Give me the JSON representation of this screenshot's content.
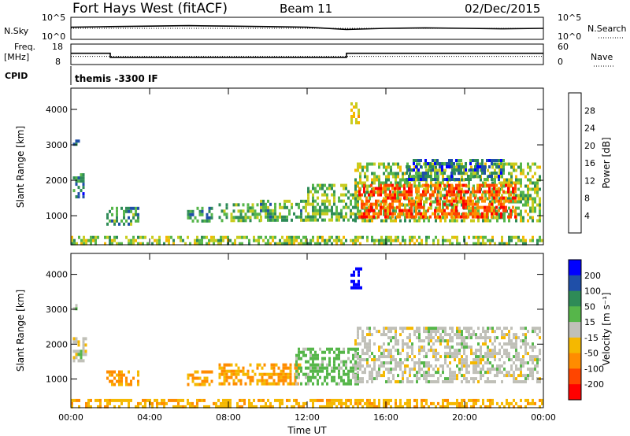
{
  "header": {
    "radar_title": "Fort Hays West (fitACF)",
    "beam_label": "Beam 11",
    "date_label": "02/Dec/2015"
  },
  "top_panels": {
    "nsky_label": "N.Sky",
    "nsearch_label": "N.Search",
    "noise_ticks_left": [
      "10^5",
      "10^0"
    ],
    "noise_ticks_right": [
      "10^5",
      "10^0"
    ],
    "freq_label_line1": "Freq.",
    "freq_label_line2": "[MHz]",
    "freq_ticks": [
      "18",
      "8"
    ],
    "nave_label": "Nave",
    "nave_ticks": [
      "60",
      "0"
    ],
    "cpid_label": "CPID",
    "cpid_value": "themis -3300 IF"
  },
  "colors": {
    "power_scale": [
      "#0000ff",
      "#1f4fa8",
      "#2e8b57",
      "#56b64a",
      "#c8cc1f",
      "#f5b800",
      "#ff8c00",
      "#ff4500",
      "#ff0000"
    ],
    "velocity_scale": [
      "#0000ff",
      "#1f4fa8",
      "#2e8b57",
      "#56b64a",
      "#c0c0b8",
      "#f5b800",
      "#ff8c00",
      "#ff4500",
      "#ff0000"
    ],
    "ground_scatter": "#c0c0b8"
  },
  "chart_data": [
    {
      "type": "heatmap",
      "title": "Power",
      "ylabel": "Slant Range [km]",
      "xlabel": "",
      "x_ticks": [
        "00:00",
        "04:00",
        "08:00",
        "12:00",
        "16:00",
        "20:00",
        "00:00"
      ],
      "y_ticks": [
        1000,
        2000,
        3000,
        4000
      ],
      "ylim": [
        180,
        4600
      ],
      "xlim": [
        0,
        24
      ],
      "colorbar_label": "Power [dB]",
      "colorbar_ticks": [
        4,
        8,
        12,
        16,
        20,
        24,
        28
      ],
      "colorbar_range": [
        0,
        32
      ],
      "regions": [
        {
          "t0": 0.1,
          "t1": 0.6,
          "r0": 1500,
          "r1": 2200,
          "value": 8
        },
        {
          "t0": 0.1,
          "t1": 0.4,
          "r0": 3050,
          "r1": 3150,
          "value": 6
        },
        {
          "t0": 1.8,
          "t1": 3.4,
          "r0": 800,
          "r1": 1250,
          "value": 10
        },
        {
          "t0": 5.9,
          "t1": 7.2,
          "r0": 850,
          "r1": 1250,
          "value": 9
        },
        {
          "t0": 7.5,
          "t1": 9.6,
          "r0": 850,
          "r1": 1350,
          "value": 13
        },
        {
          "t0": 9.6,
          "t1": 12.0,
          "r0": 850,
          "r1": 1450,
          "value": 11
        },
        {
          "t0": 12.0,
          "t1": 14.6,
          "r0": 900,
          "r1": 1900,
          "value": 13
        },
        {
          "t0": 14.2,
          "t1": 14.6,
          "r0": 3600,
          "r1": 4200,
          "value": 18
        },
        {
          "t0": 14.4,
          "t1": 23.8,
          "r0": 900,
          "r1": 2500,
          "value": 14
        },
        {
          "t0": 14.6,
          "t1": 22.6,
          "r0": 1000,
          "r1": 1900,
          "value": 26
        },
        {
          "t0": 17.0,
          "t1": 22.0,
          "r0": 2000,
          "r1": 2600,
          "value": 7
        },
        {
          "t0": 0.0,
          "t1": 24.0,
          "r0": 200,
          "r1": 430,
          "value": 14
        }
      ]
    },
    {
      "type": "heatmap",
      "title": "Velocity",
      "ylabel": "Slant Range [km]",
      "xlabel": "Time UT",
      "x_ticks": [
        "00:00",
        "04:00",
        "08:00",
        "12:00",
        "16:00",
        "20:00",
        "00:00"
      ],
      "y_ticks": [
        1000,
        2000,
        3000,
        4000
      ],
      "ylim": [
        180,
        4600
      ],
      "xlim": [
        0,
        24
      ],
      "colorbar_label": "Velocity [m s⁻¹]",
      "colorbar_ticks": [
        200,
        100,
        50,
        15,
        -15,
        -50,
        -100,
        -200
      ],
      "regions": [
        {
          "t0": 0.1,
          "t1": 0.8,
          "r0": 1500,
          "r1": 2200,
          "value": 0
        },
        {
          "t0": 0.1,
          "t1": 0.3,
          "r0": 3050,
          "r1": 3150,
          "value": 0
        },
        {
          "t0": 1.8,
          "t1": 3.4,
          "r0": 800,
          "r1": 1250,
          "value": -60
        },
        {
          "t0": 5.9,
          "t1": 7.2,
          "r0": 850,
          "r1": 1250,
          "value": -50
        },
        {
          "t0": 7.5,
          "t1": 11.6,
          "r0": 850,
          "r1": 1450,
          "value": -50
        },
        {
          "t0": 11.4,
          "t1": 14.6,
          "r0": 900,
          "r1": 1900,
          "value": 30
        },
        {
          "t0": 14.2,
          "t1": 14.7,
          "r0": 3600,
          "r1": 4200,
          "value": 250
        },
        {
          "t0": 14.4,
          "t1": 23.8,
          "r0": 900,
          "r1": 2500,
          "value": 0
        },
        {
          "t0": 0.0,
          "t1": 24.0,
          "r0": 200,
          "r1": 430,
          "value": -40
        }
      ]
    }
  ],
  "panel_lines": {
    "nsky": [
      [
        0,
        0.55
      ],
      [
        2,
        0.58
      ],
      [
        4,
        0.6
      ],
      [
        6,
        0.62
      ],
      [
        8,
        0.6
      ],
      [
        10,
        0.58
      ],
      [
        12,
        0.55
      ],
      [
        14,
        0.45
      ],
      [
        16,
        0.5
      ],
      [
        18,
        0.52
      ],
      [
        20,
        0.5
      ],
      [
        22,
        0.48
      ],
      [
        24,
        0.5
      ]
    ],
    "nsearch": [
      [
        0,
        0.5
      ],
      [
        4,
        0.5
      ],
      [
        8,
        0.5
      ],
      [
        12,
        0.5
      ],
      [
        16,
        0.5
      ],
      [
        20,
        0.5
      ],
      [
        24,
        0.5
      ]
    ],
    "freq": [
      [
        0,
        13.5
      ],
      [
        2,
        13.5
      ],
      [
        2,
        11.5
      ],
      [
        14,
        11.5
      ],
      [
        14,
        13.5
      ],
      [
        24,
        13.5
      ]
    ],
    "nave": [
      [
        0,
        24
      ],
      [
        24,
        24
      ]
    ]
  }
}
